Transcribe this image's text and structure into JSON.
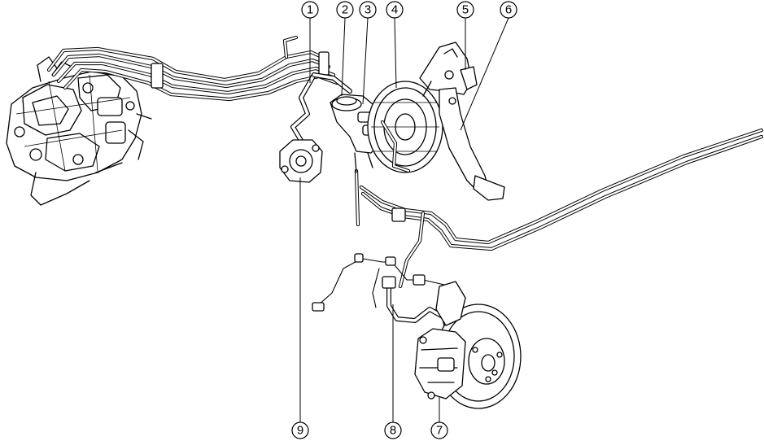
{
  "diagram": {
    "callouts": [
      {
        "id": "c1",
        "label": "1"
      },
      {
        "id": "c2",
        "label": "2"
      },
      {
        "id": "c3",
        "label": "3"
      },
      {
        "id": "c4",
        "label": "4"
      },
      {
        "id": "c5",
        "label": "5"
      },
      {
        "id": "c6",
        "label": "6"
      },
      {
        "id": "c7",
        "label": "7"
      },
      {
        "id": "c8",
        "label": "8"
      },
      {
        "id": "c9",
        "label": "9"
      }
    ]
  }
}
